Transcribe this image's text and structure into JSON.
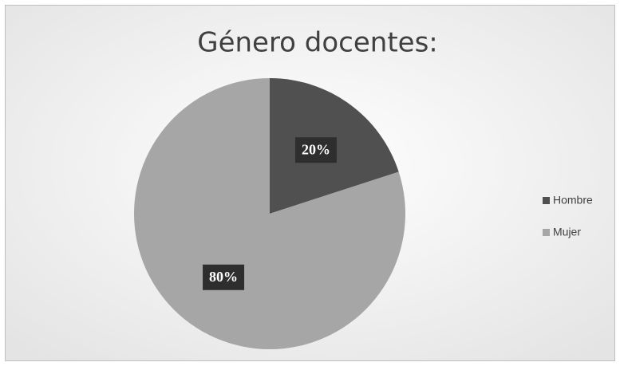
{
  "chart_data": {
    "type": "pie",
    "title": "Género docentes:",
    "categories": [
      "Hombre",
      "Mujer"
    ],
    "values": [
      20,
      80
    ],
    "value_labels": [
      "20%",
      "80%"
    ],
    "colors": [
      "#505050",
      "#a6a6a6"
    ],
    "legend": "right"
  }
}
